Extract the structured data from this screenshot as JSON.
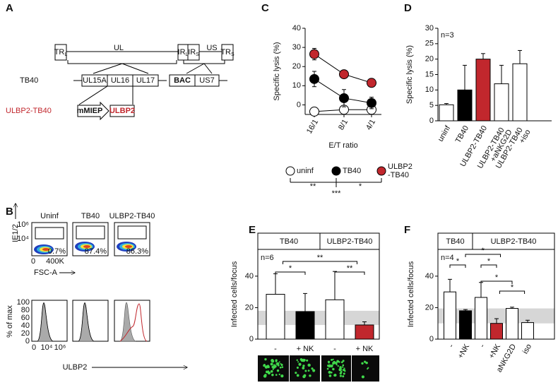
{
  "panel_labels": [
    "A",
    "B",
    "C",
    "D",
    "E",
    "F"
  ],
  "diagram": {
    "top": [
      {
        "main": "TR",
        "sub": "L"
      },
      "UL",
      {
        "main": "IR",
        "sub": "L"
      },
      {
        "main": "IR",
        "sub": "S"
      },
      "US",
      {
        "main": "TR",
        "sub": "S"
      }
    ],
    "strain": "TB40",
    "genes": [
      "UL15A",
      "UL16",
      "UL17",
      "BAC",
      "US7"
    ],
    "recombinant": "ULBP2-TB40",
    "insert": [
      "mMIEP",
      "ULBP2"
    ]
  },
  "flow": {
    "samples": [
      "Uninf",
      "TB40",
      "ULBP2-TB40"
    ],
    "gates": [
      "0.7%",
      "87.4%",
      "86.3%"
    ],
    "y_label": "IE1/2",
    "y_ticks": [
      "10⁶",
      "10⁴"
    ],
    "x_label": "FSC-A",
    "x_ticks": [
      "0",
      "400K"
    ],
    "hist_y_label": "% of max",
    "hist_y_ticks": [
      "0",
      "20",
      "40",
      "60",
      "80",
      "100"
    ],
    "hist_x_ticks": [
      "0",
      "10⁴",
      "10⁶"
    ],
    "hist_x_label": "ULBP2"
  },
  "chart_data": [
    {
      "type": "line",
      "y_label": "Specific lysis (%)",
      "x_label": "E/T ratio",
      "categories": [
        "16/1",
        "8/1",
        "4/1"
      ],
      "ylim": [
        -5,
        40
      ],
      "yticks": [
        0,
        10,
        20,
        30,
        40
      ],
      "series": [
        {
          "name": "uninf",
          "color": "#ffffff",
          "values": [
            -3.5,
            -2.5,
            -2.5
          ],
          "errors": [
            0.5,
            0.5,
            0.5
          ]
        },
        {
          "name": "TB40",
          "color": "#000000",
          "values": [
            13.5,
            3.5,
            1
          ],
          "errors": [
            4,
            4.5,
            3
          ]
        },
        {
          "name": "ULBP2 -TB40",
          "color": "#c1272d",
          "values": [
            26.5,
            16,
            11.5
          ],
          "errors": [
            3,
            1,
            1
          ]
        }
      ],
      "significance": [
        "**",
        "*",
        "***"
      ]
    },
    {
      "type": "bar",
      "y_label": "Specific lysis (%)",
      "annotation": "n=3",
      "categories": [
        "uninf",
        "TB40",
        "ULBP2-TB40",
        "ULBP2-TB40 +aNKG2D",
        "ULBP2-TB40 +iso"
      ],
      "values": [
        5.2,
        10,
        20,
        12,
        18.5
      ],
      "errors": [
        0.4,
        8,
        1.8,
        6,
        4.3
      ],
      "colors": [
        "#ffffff",
        "#000000",
        "#c1272d",
        "#ffffff",
        "#ffffff"
      ],
      "ylim": [
        0,
        30
      ],
      "yticks": [
        0,
        5,
        10,
        15,
        20,
        25,
        30
      ]
    },
    {
      "type": "bar",
      "y_label": "Infected cells/focus",
      "annotation": "n=6",
      "groups": [
        "TB40",
        "ULBP2-TB40"
      ],
      "categories": [
        "-",
        "+ NK",
        "-",
        "+ NK"
      ],
      "values": [
        28.5,
        17.5,
        25,
        9
      ],
      "errors": [
        13,
        11.5,
        18,
        2
      ],
      "colors": [
        "#ffffff",
        "#000000",
        "#ffffff",
        "#c1272d"
      ],
      "ylim": [
        0,
        57
      ],
      "yticks": [
        0,
        20,
        40
      ],
      "shaded_range": [
        9,
        18
      ],
      "significance": [
        "*",
        "**",
        "**"
      ]
    },
    {
      "type": "bar",
      "y_label": "Infected cells/focus",
      "annotation": "n=4",
      "groups": [
        "TB40",
        "ULBP2-TB40"
      ],
      "categories": [
        "-",
        "+NK",
        "-",
        "+NK",
        "aNKG2D",
        "iso"
      ],
      "values": [
        30,
        18,
        26.5,
        10,
        19.5,
        10.5
      ],
      "errors": [
        8,
        0.8,
        9.5,
        3,
        0.8,
        1.5
      ],
      "colors": [
        "#ffffff",
        "#000000",
        "#ffffff",
        "#c1272d",
        "#ffffff",
        "#ffffff"
      ],
      "ylim": [
        0,
        57
      ],
      "yticks": [
        0,
        20,
        40
      ],
      "shaded_range": [
        10,
        19.5
      ],
      "significance": [
        "*",
        "*",
        "*",
        "*",
        "*"
      ]
    }
  ]
}
